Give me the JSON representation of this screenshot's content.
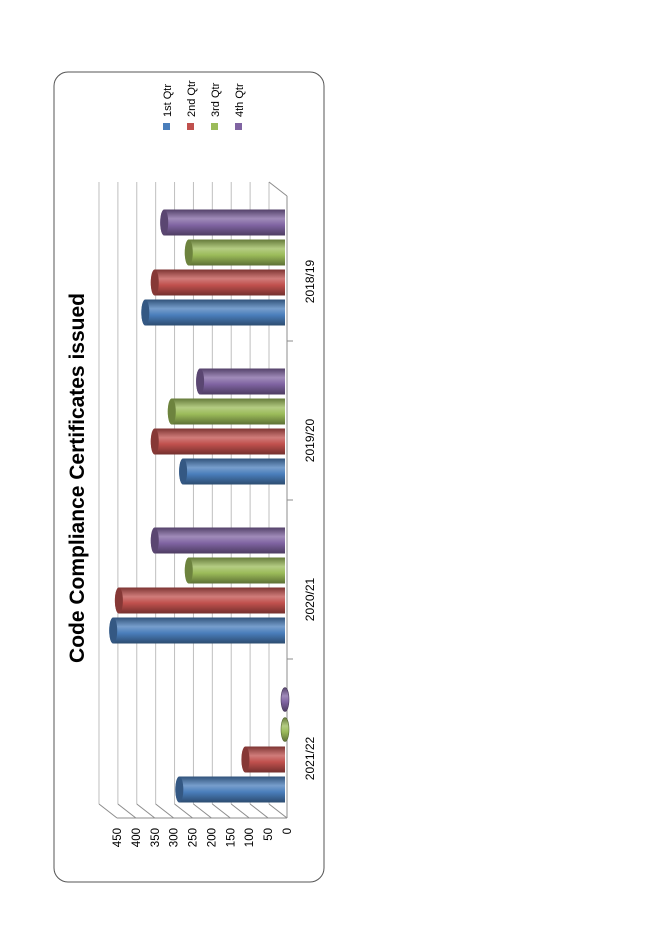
{
  "chart_data": {
    "type": "bar",
    "orientation": "rotated-90-ccw",
    "style": "3d-cylinder",
    "title": "Code Compliance Certificates issued",
    "categories": [
      "2018/19",
      "2019/20",
      "2020/21",
      "2021/22"
    ],
    "series": [
      {
        "name": "1st Qtr",
        "color": "#4a7ebb",
        "values": [
          375,
          275,
          460,
          285
        ]
      },
      {
        "name": "2nd Qtr",
        "color": "#c0504d",
        "values": [
          350,
          350,
          445,
          110
        ]
      },
      {
        "name": "3rd Qtr",
        "color": "#9bbb59",
        "values": [
          260,
          305,
          260,
          0
        ]
      },
      {
        "name": "4th Qtr",
        "color": "#8064a2",
        "values": [
          325,
          230,
          350,
          0
        ]
      }
    ],
    "yticks": [
      0,
      50,
      100,
      150,
      200,
      250,
      300,
      350,
      400,
      450
    ],
    "ylim": [
      0,
      450
    ],
    "grid": true,
    "legend": "right"
  }
}
